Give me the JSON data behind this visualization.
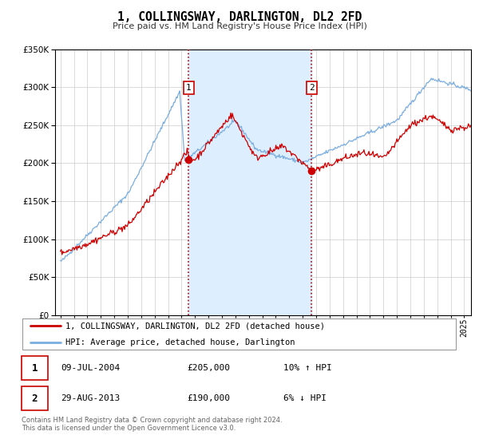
{
  "title": "1, COLLINGSWAY, DARLINGTON, DL2 2FD",
  "subtitle": "Price paid vs. HM Land Registry's House Price Index (HPI)",
  "legend_line1": "1, COLLINGSWAY, DARLINGTON, DL2 2FD (detached house)",
  "legend_line2": "HPI: Average price, detached house, Darlington",
  "annotation1_date": "09-JUL-2004",
  "annotation1_price": "£205,000",
  "annotation1_hpi": "10% ↑ HPI",
  "annotation2_date": "29-AUG-2013",
  "annotation2_price": "£190,000",
  "annotation2_hpi": "6% ↓ HPI",
  "footer": "Contains HM Land Registry data © Crown copyright and database right 2024.\nThis data is licensed under the Open Government Licence v3.0.",
  "red_color": "#cc0000",
  "blue_color": "#7aade0",
  "shaded_color": "#ddeeff",
  "background_color": "#ffffff",
  "grid_color": "#cccccc",
  "sale1_x": 2004.52,
  "sale1_y": 205000,
  "sale2_x": 2013.66,
  "sale2_y": 190000,
  "ylim": [
    0,
    350000
  ],
  "xlim_start": 1994.6,
  "xlim_end": 2025.5
}
